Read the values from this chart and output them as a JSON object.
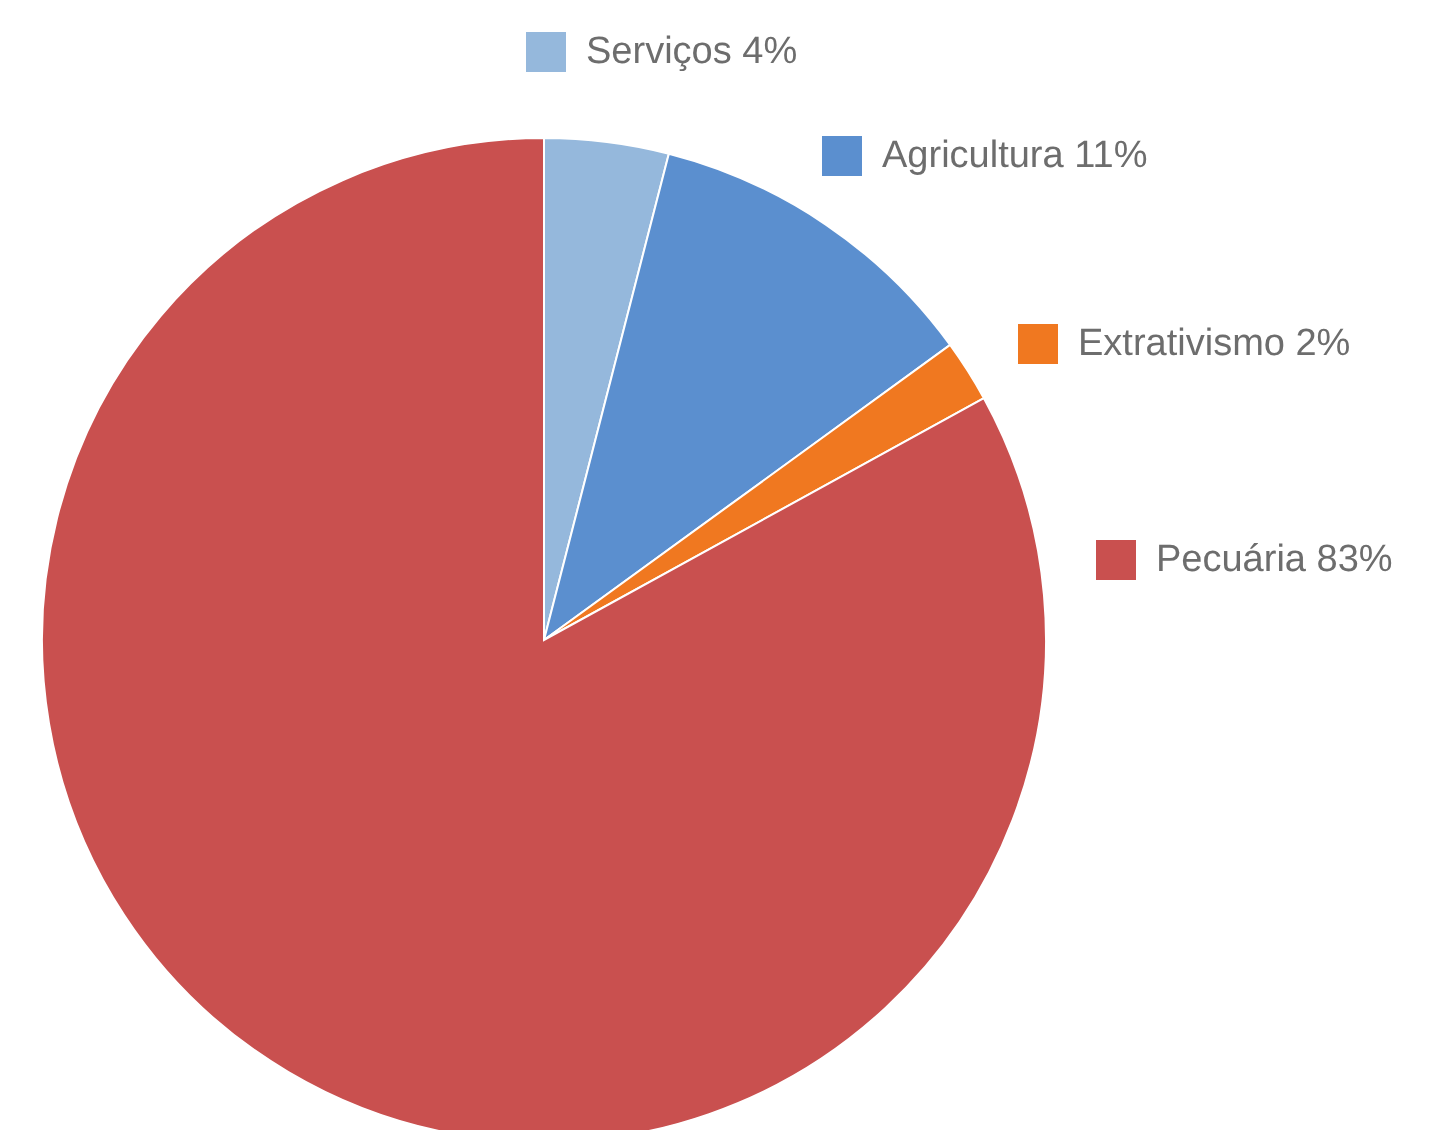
{
  "chart_data": {
    "type": "pie",
    "categories": [
      "Serviços",
      "Agricultura",
      "Extrativismo",
      "Pecuária"
    ],
    "values": [
      4,
      11,
      2,
      83
    ],
    "value_labels": [
      "4%",
      "11%",
      "2%",
      "83%"
    ],
    "colors": [
      "#95b8dc",
      "#5b8fcf",
      "#f07820",
      "#c9504f"
    ],
    "legend": "right"
  }
}
